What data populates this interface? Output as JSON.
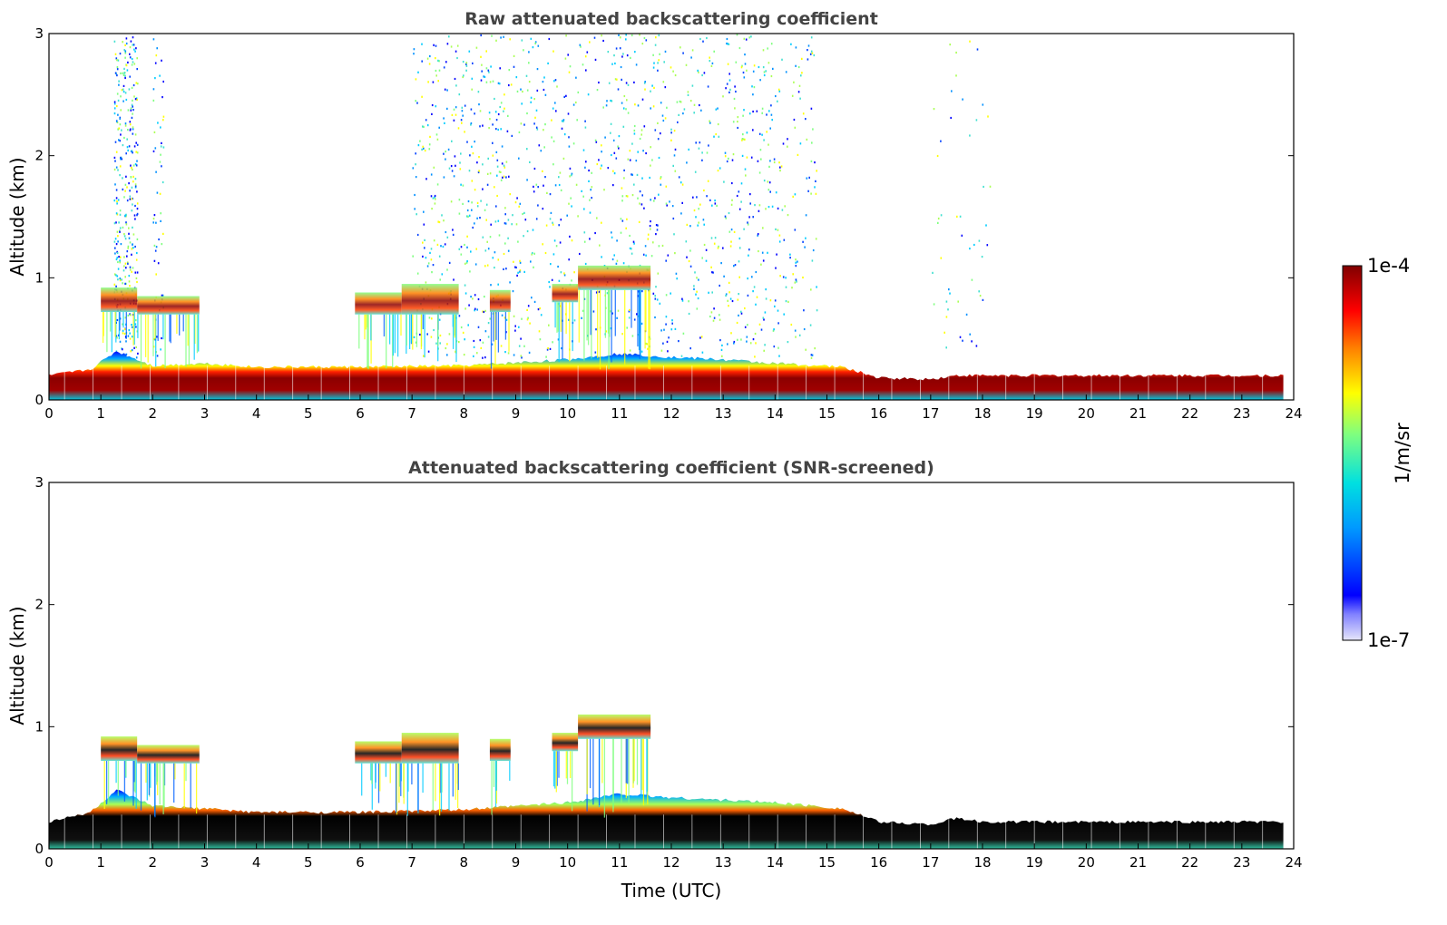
{
  "chart_data": [
    {
      "type": "heatmap",
      "title": "Raw attenuated backscattering coefficient",
      "xlabel": "",
      "ylabel": "Altitude (km)",
      "xlim": [
        0,
        24
      ],
      "ylim": [
        0,
        3
      ],
      "x_ticks": [
        "0",
        "1",
        "2",
        "3",
        "4",
        "5",
        "6",
        "7",
        "8",
        "9",
        "10",
        "11",
        "12",
        "13",
        "14",
        "15",
        "16",
        "17",
        "18",
        "19",
        "20",
        "21",
        "22",
        "23",
        "24"
      ],
      "y_ticks": [
        "0",
        "1",
        "2",
        "3"
      ],
      "boundary_layer_top_km": [
        [
          0,
          0.2
        ],
        [
          0.8,
          0.25
        ],
        [
          1.3,
          0.4
        ],
        [
          2,
          0.28
        ],
        [
          3,
          0.3
        ],
        [
          4,
          0.27
        ],
        [
          6,
          0.27
        ],
        [
          8,
          0.28
        ],
        [
          10,
          0.33
        ],
        [
          11,
          0.38
        ],
        [
          12,
          0.35
        ],
        [
          13,
          0.33
        ],
        [
          14,
          0.3
        ],
        [
          15.3,
          0.27
        ],
        [
          16,
          0.18
        ],
        [
          17,
          0.17
        ],
        [
          17.5,
          0.2
        ],
        [
          18,
          0.2
        ],
        [
          23.8,
          0.2
        ]
      ],
      "cloud_layers": [
        {
          "t_start": 1.0,
          "t_end": 1.7,
          "base_km": 0.72,
          "top_km": 0.92
        },
        {
          "t_start": 1.7,
          "t_end": 2.9,
          "base_km": 0.7,
          "top_km": 0.85
        },
        {
          "t_start": 5.9,
          "t_end": 6.8,
          "base_km": 0.7,
          "top_km": 0.88
        },
        {
          "t_start": 6.8,
          "t_end": 7.9,
          "base_km": 0.7,
          "top_km": 0.95
        },
        {
          "t_start": 8.5,
          "t_end": 8.9,
          "base_km": 0.72,
          "top_km": 0.9
        },
        {
          "t_start": 9.7,
          "t_end": 10.2,
          "base_km": 0.8,
          "top_km": 0.95
        },
        {
          "t_start": 10.2,
          "t_end": 11.6,
          "base_km": 0.9,
          "top_km": 1.1
        }
      ],
      "colorbar": {
        "min_label": "1e-7",
        "max_label": "1e-4",
        "label": "1/m/sr",
        "scale": "log"
      }
    },
    {
      "type": "heatmap",
      "title": "Attenuated backscattering coefficient (SNR-screened)",
      "xlabel": "Time (UTC)",
      "ylabel": "Altitude (km)",
      "xlim": [
        0,
        24
      ],
      "ylim": [
        0,
        3
      ],
      "x_ticks": [
        "0",
        "1",
        "2",
        "3",
        "4",
        "5",
        "6",
        "7",
        "8",
        "9",
        "10",
        "11",
        "12",
        "13",
        "14",
        "15",
        "16",
        "17",
        "18",
        "19",
        "20",
        "21",
        "22",
        "23",
        "24"
      ],
      "y_ticks": [
        "0",
        "1",
        "2",
        "3"
      ],
      "boundary_layer_top_km": [
        [
          0,
          0.22
        ],
        [
          0.8,
          0.3
        ],
        [
          1.3,
          0.48
        ],
        [
          2,
          0.35
        ],
        [
          3,
          0.33
        ],
        [
          4,
          0.3
        ],
        [
          6,
          0.3
        ],
        [
          8,
          0.32
        ],
        [
          10,
          0.38
        ],
        [
          11,
          0.45
        ],
        [
          12,
          0.42
        ],
        [
          13,
          0.4
        ],
        [
          14,
          0.38
        ],
        [
          15.3,
          0.33
        ],
        [
          16,
          0.22
        ],
        [
          17,
          0.2
        ],
        [
          17.5,
          0.25
        ],
        [
          18,
          0.22
        ],
        [
          23.8,
          0.22
        ]
      ],
      "cloud_layers": [
        {
          "t_start": 1.0,
          "t_end": 1.7,
          "base_km": 0.72,
          "top_km": 0.92
        },
        {
          "t_start": 1.7,
          "t_end": 2.9,
          "base_km": 0.7,
          "top_km": 0.85
        },
        {
          "t_start": 5.9,
          "t_end": 6.8,
          "base_km": 0.7,
          "top_km": 0.88
        },
        {
          "t_start": 6.8,
          "t_end": 7.9,
          "base_km": 0.7,
          "top_km": 0.95
        },
        {
          "t_start": 8.5,
          "t_end": 8.9,
          "base_km": 0.72,
          "top_km": 0.9
        },
        {
          "t_start": 9.7,
          "t_end": 10.2,
          "base_km": 0.8,
          "top_km": 0.95
        },
        {
          "t_start": 10.2,
          "t_end": 11.6,
          "base_km": 0.9,
          "top_km": 1.1
        }
      ],
      "colorbar": {
        "min_label": "1e-7",
        "max_label": "1e-4",
        "label": "1/m/sr",
        "scale": "log"
      }
    }
  ]
}
